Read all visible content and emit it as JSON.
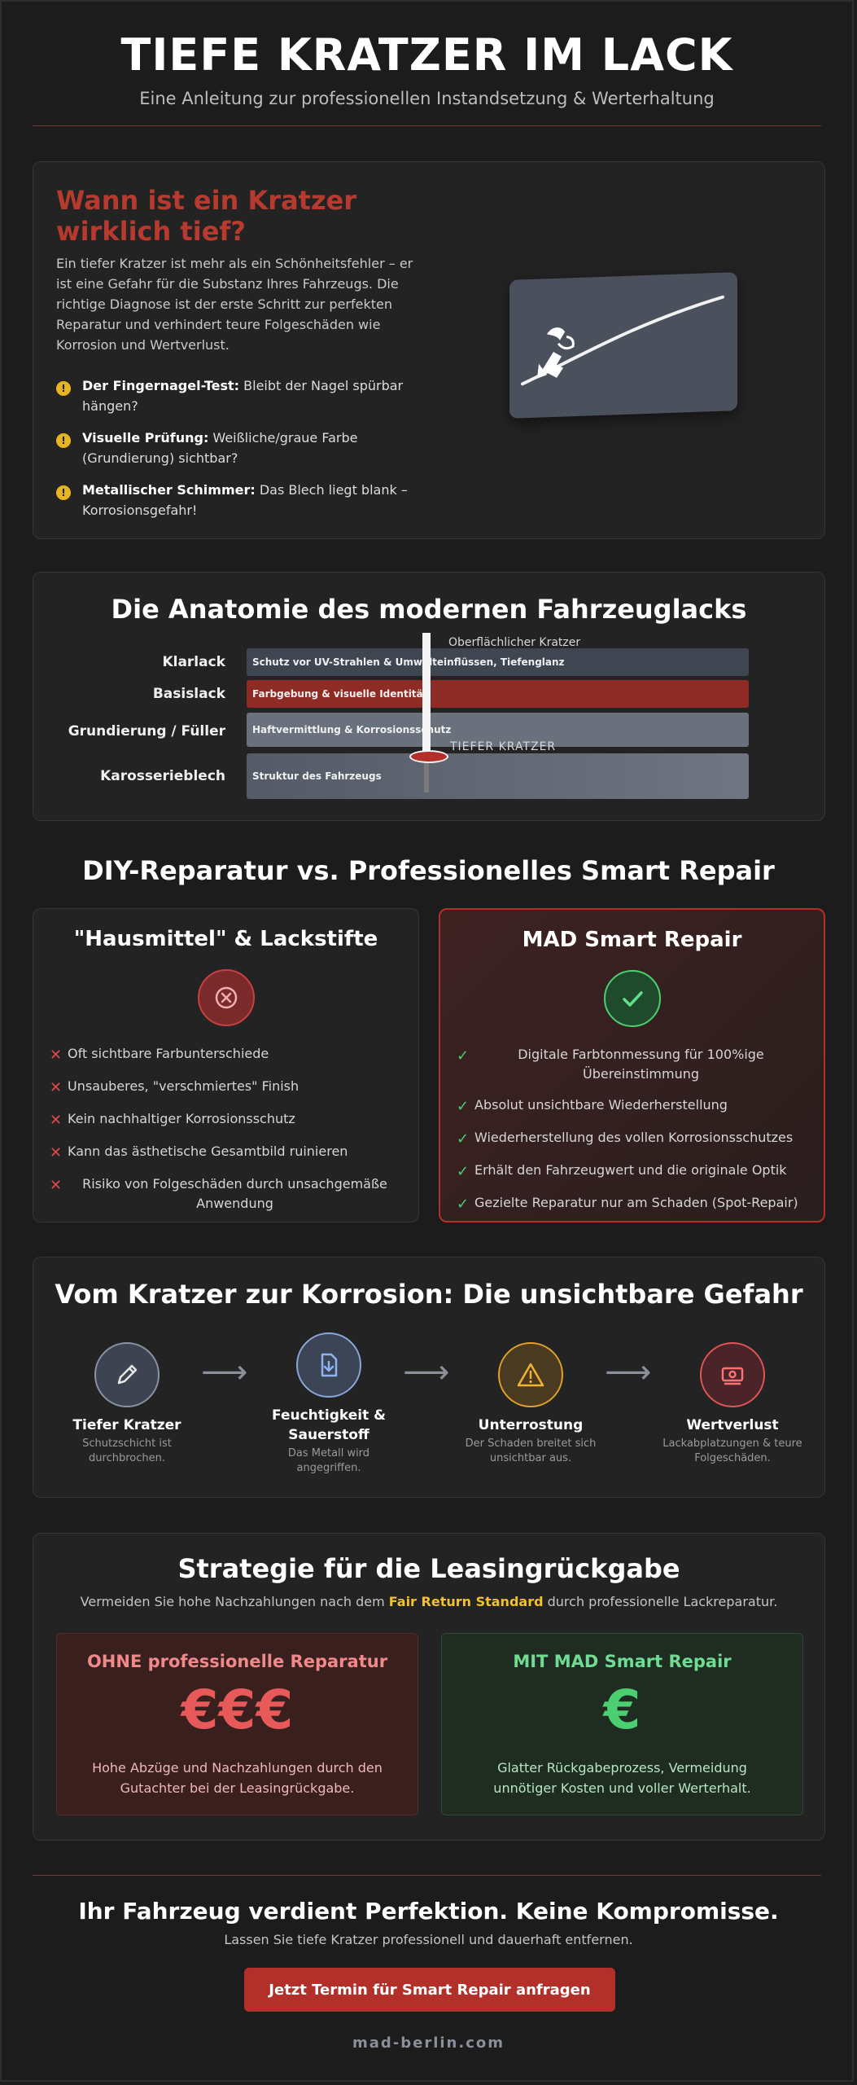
{
  "hero": {
    "title": "TIEFE KRATZER IM LACK",
    "subtitle": "Eine Anleitung zur professionellen Instandsetzung & Werterhaltung"
  },
  "diagnosis": {
    "title": "Wann ist ein Kratzer wirklich tief?",
    "intro": "Ein tiefer Kratzer ist mehr als ein Schönheitsfehler – er ist eine Gefahr für die Substanz Ihres Fahrzeugs. Die richtige Diagnose ist der erste Schritt zur perfekten Reparatur und verhindert teure Folgeschäden wie Korrosion und Wertverlust.",
    "checks": [
      {
        "bold": "Der Fingernagel-Test:",
        "text": " Bleibt der Nagel spürbar hängen?"
      },
      {
        "bold": "Visuelle Prüfung:",
        "text": " Weißliche/graue Farbe (Grundierung) sichtbar?"
      },
      {
        "bold": "Metallischer Schimmer:",
        "text": " Das Blech liegt blank – Korrosionsgefahr!"
      }
    ],
    "bullet_glyph": "!"
  },
  "anatomy": {
    "title": "Die Anatomie des modernen Fahrzeuglacks",
    "layers": [
      {
        "name": "Klarlack",
        "desc": "Schutz vor UV-Strahlen & Umwelteinflüssen, Tiefenglanz",
        "color": "#3f4652"
      },
      {
        "name": "Basislack",
        "desc": "Farbgebung & visuelle Identität",
        "color": "#8e2b24"
      },
      {
        "name": "Grundierung / Füller",
        "desc": "Haftvermittlung & Korrosionsschutz",
        "color": "#6b717c"
      },
      {
        "name": "Karosserieblech",
        "desc": "Struktur des Fahrzeugs",
        "color": "#5d6470"
      }
    ],
    "label_top": "Oberflächlicher Kratzer",
    "label_bottom": "TIEFER KRATZER"
  },
  "comparison": {
    "title": "DIY-Reparatur vs. Professionelles Smart Repair",
    "diy": {
      "title": "\"Hausmittel\" & Lackstifte",
      "mark": "✕",
      "items": [
        "Oft sichtbare Farbunterschiede",
        "Unsauberes, \"verschmiertes\" Finish",
        "Kein nachhaltiger Korrosionsschutz",
        "Kann das ästhetische Gesamtbild ruinieren",
        "Risiko von Folgeschäden durch unsachgemäße Anwendung"
      ]
    },
    "pro": {
      "title": "MAD Smart Repair",
      "mark": "✓",
      "items": [
        "Digitale Farbtonmessung für 100%ige Übereinstimmung",
        "Absolut unsichtbare Wiederherstellung",
        "Wiederherstellung des vollen Korrosionsschutzes",
        "Erhält den Fahrzeugwert und die originale Optik",
        "Gezielte Reparatur nur am Schaden (Spot-Repair)"
      ]
    }
  },
  "corrosion": {
    "title": "Vom Kratzer zur Korrosion: Die unsichtbare Gefahr",
    "arrow": "⟶",
    "steps": [
      {
        "name": "Tiefer Kratzer",
        "desc": "Schutzschicht ist durchbrochen.",
        "icon": "pencil-icon",
        "color": "#8a93a3"
      },
      {
        "name": "Feuchtigkeit & Sauerstoff",
        "desc": "Das Metall wird angegriffen.",
        "icon": "document-download-icon",
        "color": "#8aa6d6"
      },
      {
        "name": "Unterrostung",
        "desc": "Der Schaden breitet sich unsichtbar aus.",
        "icon": "warning-icon",
        "color": "#e0a02e"
      },
      {
        "name": "Wertverlust",
        "desc": "Lackabplatzungen & teure Folgeschäden.",
        "icon": "money-icon",
        "color": "#e05555"
      }
    ]
  },
  "leasing": {
    "title": "Strategie für die Leasingrückgabe",
    "sub_before": "Vermeiden Sie hohe Nachzahlungen nach dem ",
    "sub_highlight": "Fair Return Standard",
    "sub_after": " durch professionelle Lackreparatur.",
    "without": {
      "title": "OHNE professionelle Reparatur",
      "symbol": "€€€",
      "text": "Hohe Abzüge und Nachzahlungen durch den Gutachter bei der Leasingrückgabe."
    },
    "with": {
      "title": "MIT MAD Smart Repair",
      "symbol": "€",
      "text": "Glatter Rückgabeprozess, Vermeidung unnötiger Kosten und voller Werterhalt."
    }
  },
  "footer": {
    "title": "Ihr Fahrzeug verdient Perfektion. Keine Kompromisse.",
    "sub": "Lassen Sie tiefe Kratzer professionell und dauerhaft entfernen.",
    "cta": "Jetzt Termin für Smart Repair anfragen",
    "domain": "mad-berlin.com"
  }
}
